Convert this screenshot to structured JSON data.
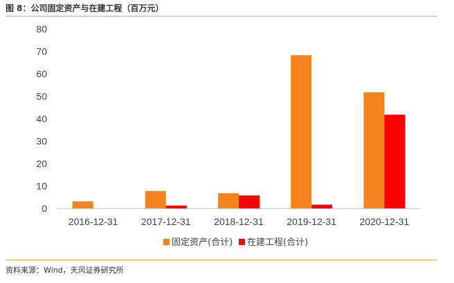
{
  "header": {
    "title": "图 8：公司固定资产与在建工程（百万元）"
  },
  "footer": {
    "source": "资料来源：Wind，天风证券研究所"
  },
  "chart_data": {
    "type": "bar",
    "categories": [
      "2016-12-31",
      "2017-12-31",
      "2018-12-31",
      "2019-12-31",
      "2020-12-31"
    ],
    "series": [
      {
        "name": "固定资产(合计)",
        "color": "#f5841f",
        "values": [
          3.2,
          7.8,
          6.8,
          68.3,
          51.8
        ]
      },
      {
        "name": "在建工程(合计)",
        "color": "#ff0000",
        "values": [
          0,
          1.3,
          5.8,
          1.7,
          41.8
        ]
      }
    ],
    "yticks": [
      "0",
      "10",
      "20",
      "30",
      "40",
      "50",
      "60",
      "70",
      "80"
    ],
    "ylim": [
      0,
      80
    ],
    "grid": false,
    "legend": "bottom-center"
  }
}
